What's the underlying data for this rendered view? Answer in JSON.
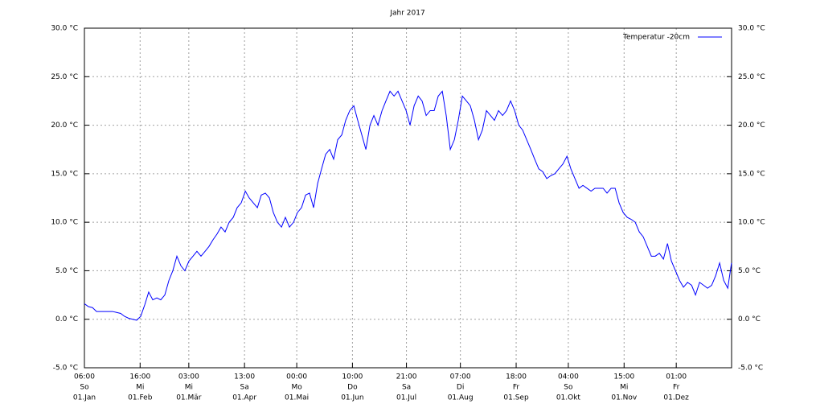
{
  "chart_data": {
    "type": "line",
    "title": "Jahr 2017",
    "x": [
      0.25,
      2.5,
      4.8,
      7.1,
      9.3,
      11.6,
      13.9,
      16.1,
      18.4,
      20.7,
      22.9,
      25.2,
      27.5,
      29.7,
      32.0,
      34.3,
      36.5,
      38.8,
      41.1,
      43.3,
      45.6,
      47.9,
      50.1,
      52.4,
      54.7,
      56.9,
      59.2,
      61.5,
      63.7,
      66.0,
      68.3,
      70.5,
      72.8,
      75.1,
      77.3,
      79.6,
      81.9,
      84.2,
      86.4,
      88.7,
      91.0,
      93.2,
      95.5,
      97.8,
      100.0,
      102.3,
      104.6,
      106.8,
      109.1,
      111.4,
      113.6,
      115.9,
      118.2,
      120.4,
      122.7,
      125.0,
      127.2,
      129.5,
      131.8,
      134.0,
      136.3,
      138.6,
      140.8,
      143.1,
      145.4,
      147.6,
      149.9,
      152.2,
      154.4,
      156.7,
      159.0,
      161.3,
      163.5,
      165.8,
      168.1,
      170.3,
      172.6,
      174.9,
      177.1,
      179.4,
      181.7,
      183.9,
      186.2,
      188.5,
      190.7,
      193.0,
      195.3,
      197.5,
      199.8,
      202.1,
      204.3,
      206.6,
      208.9,
      211.1,
      213.4,
      215.7,
      217.9,
      220.2,
      222.5,
      224.7,
      227.0,
      229.3,
      231.5,
      233.8,
      236.1,
      238.3,
      240.6,
      242.9,
      245.2,
      247.4,
      249.7,
      252.0,
      254.2,
      256.5,
      258.8,
      261.0,
      263.3,
      265.6,
      267.8,
      270.1,
      272.4,
      274.6,
      276.9,
      279.2,
      281.4,
      283.7,
      286.0,
      288.2,
      290.5,
      292.8,
      295.0,
      297.3,
      299.6,
      301.8,
      304.1,
      306.4,
      308.6,
      310.9,
      313.2,
      315.4,
      317.7,
      320.0,
      322.2,
      324.5,
      326.8,
      329.1,
      331.3,
      333.6,
      335.9,
      338.1,
      340.4,
      342.7,
      344.9,
      347.2,
      349.5,
      351.7,
      354.0,
      356.3,
      358.5,
      360.8,
      363.1,
      365.2
    ],
    "series": [
      {
        "name": "Temperatur -20cm",
        "color": "#0000ff",
        "values": [
          1.6,
          1.3,
          1.2,
          0.8,
          0.8,
          0.8,
          0.8,
          0.8,
          0.7,
          0.6,
          0.3,
          0.1,
          0.0,
          -0.1,
          0.3,
          1.5,
          2.8,
          2.0,
          2.2,
          2.0,
          2.5,
          4.0,
          5.0,
          6.5,
          5.5,
          5.0,
          6.0,
          6.5,
          7.0,
          6.5,
          7.0,
          7.5,
          8.2,
          8.8,
          9.5,
          9.0,
          10.0,
          10.5,
          11.5,
          12.0,
          13.2,
          12.5,
          12.0,
          11.5,
          12.8,
          13.0,
          12.5,
          11.0,
          10.0,
          9.5,
          10.5,
          9.5,
          10.0,
          11.0,
          11.5,
          12.8,
          13.0,
          11.5,
          14.0,
          15.5,
          17.0,
          17.5,
          16.5,
          18.5,
          19.0,
          20.5,
          21.5,
          22.0,
          20.5,
          19.0,
          17.5,
          20.0,
          21.0,
          20.0,
          21.5,
          22.5,
          23.5,
          23.0,
          23.5,
          22.5,
          21.5,
          20.0,
          22.0,
          23.0,
          22.5,
          21.0,
          21.5,
          21.5,
          23.0,
          23.5,
          21.0,
          17.5,
          18.5,
          20.5,
          23.0,
          22.5,
          22.0,
          20.5,
          18.5,
          19.5,
          21.5,
          21.0,
          20.5,
          21.5,
          21.0,
          21.5,
          22.5,
          21.5,
          20.0,
          19.5,
          18.5,
          17.5,
          16.5,
          15.5,
          15.2,
          14.5,
          14.8,
          15.0,
          15.5,
          16.0,
          16.8,
          15.5,
          14.5,
          13.5,
          13.8,
          13.5,
          13.2,
          13.5,
          13.5,
          13.5,
          13.0,
          13.5,
          13.5,
          12.0,
          11.0,
          10.5,
          10.3,
          10.0,
          9.0,
          8.5,
          7.5,
          6.5,
          6.5,
          6.8,
          6.2,
          7.8,
          6.0,
          5.0,
          4.0,
          3.3,
          3.8,
          3.5,
          2.5,
          3.8,
          3.5,
          3.2,
          3.5,
          4.5,
          5.8,
          4.0,
          3.2,
          5.8
        ]
      }
    ],
    "xlim": [
      0.25,
      365.25
    ],
    "xticks": [
      {
        "value": 0.25,
        "label": [
          "06:00",
          "So",
          "01.Jan"
        ]
      },
      {
        "value": 31.667,
        "label": [
          "16:00",
          "Mi",
          "01.Feb"
        ]
      },
      {
        "value": 59.125,
        "label": [
          "03:00",
          "Mi",
          "01.Mär"
        ]
      },
      {
        "value": 90.542,
        "label": [
          "13:00",
          "Sa",
          "01.Apr"
        ]
      },
      {
        "value": 120.0,
        "label": [
          "00:00",
          "Mo",
          "01.Mai"
        ]
      },
      {
        "value": 151.417,
        "label": [
          "10:00",
          "Do",
          "01.Jun"
        ]
      },
      {
        "value": 181.875,
        "label": [
          "21:00",
          "Sa",
          "01.Jul"
        ]
      },
      {
        "value": 212.292,
        "label": [
          "07:00",
          "Di",
          "01.Aug"
        ]
      },
      {
        "value": 243.75,
        "label": [
          "18:00",
          "Fr",
          "01.Sep"
        ]
      },
      {
        "value": 273.167,
        "label": [
          "04:00",
          "So",
          "01.Okt"
        ]
      },
      {
        "value": 304.625,
        "label": [
          "15:00",
          "Mi",
          "01.Nov"
        ]
      },
      {
        "value": 334.042,
        "label": [
          "01:00",
          "Fr",
          "01.Dez"
        ]
      }
    ],
    "ylim": [
      -5,
      30
    ],
    "yticks": [
      {
        "value": -5,
        "label": "-5.0 °C"
      },
      {
        "value": 0,
        "label": "0.0 °C"
      },
      {
        "value": 5,
        "label": "5.0 °C"
      },
      {
        "value": 10,
        "label": "10.0 °C"
      },
      {
        "value": 15,
        "label": "15.0 °C"
      },
      {
        "value": 20,
        "label": "20.0 °C"
      },
      {
        "value": 25,
        "label": "25.0 °C"
      },
      {
        "value": 30,
        "label": "30.0 °C"
      }
    ],
    "grid": true,
    "legend": "upper right"
  }
}
